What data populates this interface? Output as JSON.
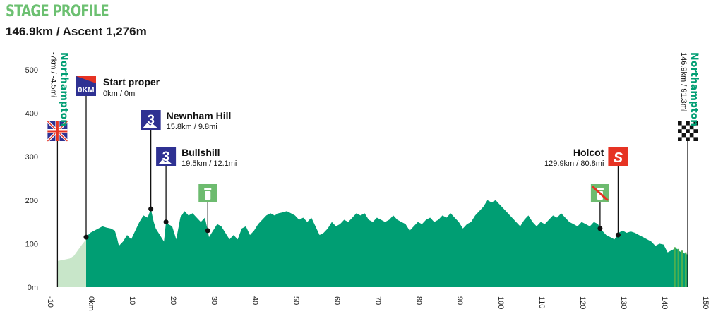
{
  "header": {
    "title": "STAGE PROFILE",
    "subtitle": "146.9km / Ascent 1,276m"
  },
  "colors": {
    "title": "#6cc071",
    "profile": "#009e73",
    "neutral_zone": "#c8e6c9",
    "finish_stripe": "#4caf50",
    "town": "#009e73",
    "climb_badge": "#2e3192",
    "sprint_badge": "#e63323",
    "feed_badge": "#6dbb6f"
  },
  "chart_data": {
    "type": "area",
    "xlim": [
      -10,
      150
    ],
    "ylim": [
      0,
      500
    ],
    "x_ticks": [
      "-10",
      "0km",
      "10",
      "20",
      "30",
      "40",
      "50",
      "60",
      "70",
      "80",
      "90",
      "100",
      "110",
      "120",
      "130",
      "140",
      "150"
    ],
    "y_ticks": [
      "0m",
      "100",
      "200",
      "300",
      "400",
      "500"
    ],
    "neutral_profile": [
      [
        -7,
        60
      ],
      [
        -6,
        62
      ],
      [
        -5,
        64
      ],
      [
        -4,
        66
      ],
      [
        -3,
        72
      ],
      [
        -2,
        85
      ],
      [
        -1,
        98
      ],
      [
        0,
        110
      ],
      [
        0.3,
        115
      ]
    ],
    "profile": [
      [
        0,
        115
      ],
      [
        1,
        125
      ],
      [
        2,
        130
      ],
      [
        3,
        135
      ],
      [
        4,
        140
      ],
      [
        5,
        137
      ],
      [
        6,
        135
      ],
      [
        7,
        130
      ],
      [
        7.5,
        115
      ],
      [
        8,
        95
      ],
      [
        9,
        105
      ],
      [
        10,
        120
      ],
      [
        11,
        110
      ],
      [
        12,
        130
      ],
      [
        13,
        150
      ],
      [
        14,
        165
      ],
      [
        15,
        160
      ],
      [
        15.8,
        180
      ],
      [
        16.5,
        150
      ],
      [
        17,
        135
      ],
      [
        18,
        120
      ],
      [
        19,
        105
      ],
      [
        19.5,
        150
      ],
      [
        20,
        145
      ],
      [
        21,
        140
      ],
      [
        22,
        110
      ],
      [
        23,
        160
      ],
      [
        24,
        175
      ],
      [
        25,
        165
      ],
      [
        26,
        170
      ],
      [
        27,
        160
      ],
      [
        28,
        150
      ],
      [
        29,
        160
      ],
      [
        29.7,
        130
      ],
      [
        30,
        115
      ],
      [
        31,
        130
      ],
      [
        32,
        145
      ],
      [
        33,
        140
      ],
      [
        34,
        125
      ],
      [
        35,
        110
      ],
      [
        36,
        120
      ],
      [
        37,
        110
      ],
      [
        38,
        135
      ],
      [
        39,
        140
      ],
      [
        40,
        120
      ],
      [
        41,
        130
      ],
      [
        42,
        145
      ],
      [
        43,
        155
      ],
      [
        44,
        165
      ],
      [
        45,
        170
      ],
      [
        46,
        165
      ],
      [
        47,
        170
      ],
      [
        48,
        172
      ],
      [
        49,
        175
      ],
      [
        50,
        170
      ],
      [
        51,
        165
      ],
      [
        52,
        155
      ],
      [
        53,
        160
      ],
      [
        54,
        150
      ],
      [
        55,
        160
      ],
      [
        56,
        140
      ],
      [
        57,
        120
      ],
      [
        58,
        125
      ],
      [
        59,
        135
      ],
      [
        60,
        150
      ],
      [
        61,
        140
      ],
      [
        62,
        145
      ],
      [
        63,
        155
      ],
      [
        64,
        150
      ],
      [
        65,
        160
      ],
      [
        66,
        170
      ],
      [
        67,
        165
      ],
      [
        68,
        170
      ],
      [
        69,
        155
      ],
      [
        70,
        150
      ],
      [
        71,
        160
      ],
      [
        72,
        155
      ],
      [
        73,
        150
      ],
      [
        74,
        155
      ],
      [
        75,
        165
      ],
      [
        76,
        155
      ],
      [
        77,
        150
      ],
      [
        78,
        145
      ],
      [
        79,
        130
      ],
      [
        80,
        140
      ],
      [
        81,
        150
      ],
      [
        82,
        145
      ],
      [
        83,
        155
      ],
      [
        84,
        160
      ],
      [
        85,
        150
      ],
      [
        86,
        155
      ],
      [
        87,
        165
      ],
      [
        88,
        160
      ],
      [
        89,
        170
      ],
      [
        90,
        160
      ],
      [
        91,
        150
      ],
      [
        92,
        135
      ],
      [
        93,
        145
      ],
      [
        94,
        150
      ],
      [
        95,
        165
      ],
      [
        96,
        175
      ],
      [
        97,
        185
      ],
      [
        98,
        200
      ],
      [
        99,
        195
      ],
      [
        100,
        200
      ],
      [
        101,
        190
      ],
      [
        102,
        180
      ],
      [
        103,
        170
      ],
      [
        104,
        160
      ],
      [
        105,
        150
      ],
      [
        106,
        140
      ],
      [
        107,
        155
      ],
      [
        108,
        165
      ],
      [
        109,
        150
      ],
      [
        110,
        140
      ],
      [
        111,
        150
      ],
      [
        112,
        145
      ],
      [
        113,
        155
      ],
      [
        114,
        165
      ],
      [
        115,
        160
      ],
      [
        116,
        170
      ],
      [
        117,
        160
      ],
      [
        118,
        150
      ],
      [
        119,
        145
      ],
      [
        120,
        140
      ],
      [
        121,
        150
      ],
      [
        122,
        145
      ],
      [
        123,
        140
      ],
      [
        124,
        150
      ],
      [
        125,
        145
      ],
      [
        125.5,
        135
      ],
      [
        126,
        130
      ],
      [
        127,
        120
      ],
      [
        128,
        115
      ],
      [
        129,
        110
      ],
      [
        129.9,
        120
      ],
      [
        130,
        125
      ],
      [
        131,
        130
      ],
      [
        132,
        125
      ],
      [
        133,
        128
      ],
      [
        134,
        125
      ],
      [
        135,
        120
      ],
      [
        136,
        115
      ],
      [
        137,
        110
      ],
      [
        138,
        105
      ],
      [
        139,
        95
      ],
      [
        140,
        100
      ],
      [
        141,
        98
      ],
      [
        142,
        80
      ],
      [
        143,
        85
      ],
      [
        144,
        90
      ],
      [
        145,
        82
      ],
      [
        146,
        78
      ],
      [
        146.9,
        75
      ]
    ],
    "markers": [
      {
        "x": 0,
        "y": 115,
        "name": "Start proper",
        "dist": "0km / 0mi",
        "badge": "0KM",
        "kind": "start"
      },
      {
        "x": 15.8,
        "y": 180,
        "name": "Newnham Hill",
        "dist": "15.8km / 9.8mi",
        "badge": "3",
        "kind": "climb"
      },
      {
        "x": 19.5,
        "y": 150,
        "name": "Bullshill",
        "dist": "19.5km / 12.1mi",
        "badge": "3",
        "kind": "climb"
      },
      {
        "x": 29.7,
        "y": 130,
        "kind": "feed"
      },
      {
        "x": 125.5,
        "y": 135,
        "kind": "nofeed"
      },
      {
        "x": 129.9,
        "y": 120,
        "name": "Holcot",
        "dist": "129.9km / 80.8mi",
        "badge": "S",
        "kind": "sprint"
      }
    ],
    "towns": [
      {
        "name": "Northampton",
        "dist": "-7km / -4.5mi",
        "x": -7,
        "flag": "union"
      },
      {
        "name": "Northampton",
        "dist": "146.9km / 91.3mi",
        "x": 146.9,
        "flag": "chequered"
      }
    ]
  }
}
